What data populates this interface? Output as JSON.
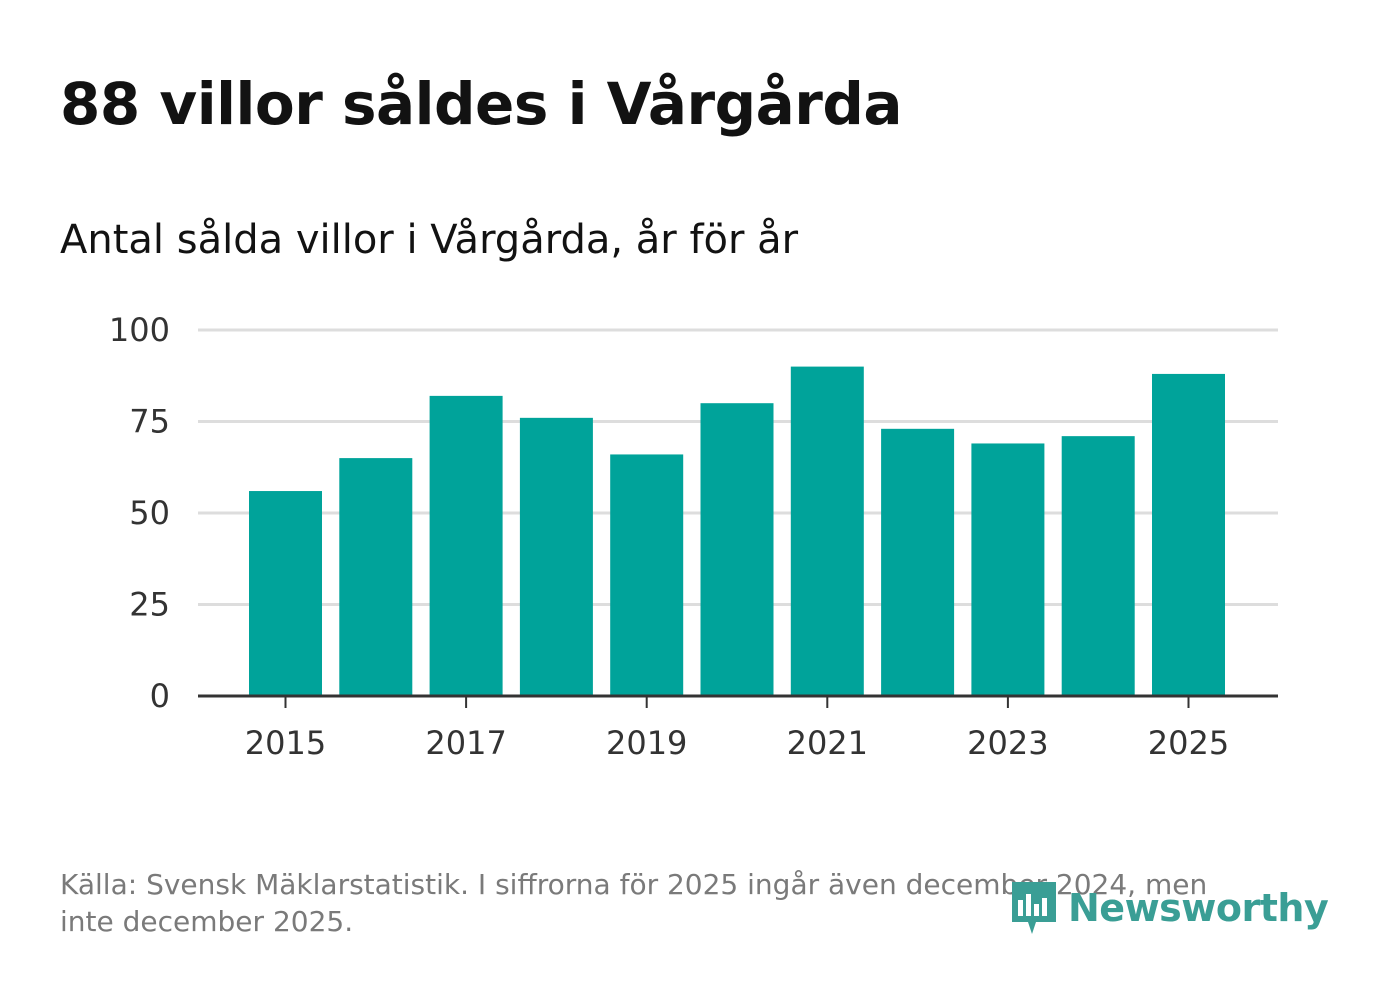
{
  "header": {
    "title": "88 villor såldes i Vårgårda",
    "subtitle": "Antal sålda villor i Vårgårda, år för år"
  },
  "footer": {
    "source": "Källa: Svensk Mäklarstatistik. I siffrorna för 2025 ingår även december 2024, men inte december 2025.",
    "logo_text": "Newsworthy",
    "logo_icon": "bar-chart-speech-bubble-icon",
    "logo_color": "#3a9e95"
  },
  "colors": {
    "bar": "#00a39a",
    "grid": "#dddddd",
    "axis": "#333333"
  },
  "chart_data": {
    "type": "bar",
    "title": "Antal sålda villor i Vårgårda, år för år",
    "xlabel": "",
    "ylabel": "",
    "categories": [
      2015,
      2016,
      2017,
      2018,
      2019,
      2020,
      2021,
      2022,
      2023,
      2024,
      2025
    ],
    "values": [
      56,
      65,
      82,
      76,
      66,
      80,
      90,
      73,
      69,
      71,
      88
    ],
    "ylim": [
      0,
      100
    ],
    "yticks": [
      0,
      25,
      50,
      75,
      100
    ],
    "xticks": [
      2015,
      2017,
      2019,
      2021,
      2023,
      2025
    ],
    "grid": true
  }
}
